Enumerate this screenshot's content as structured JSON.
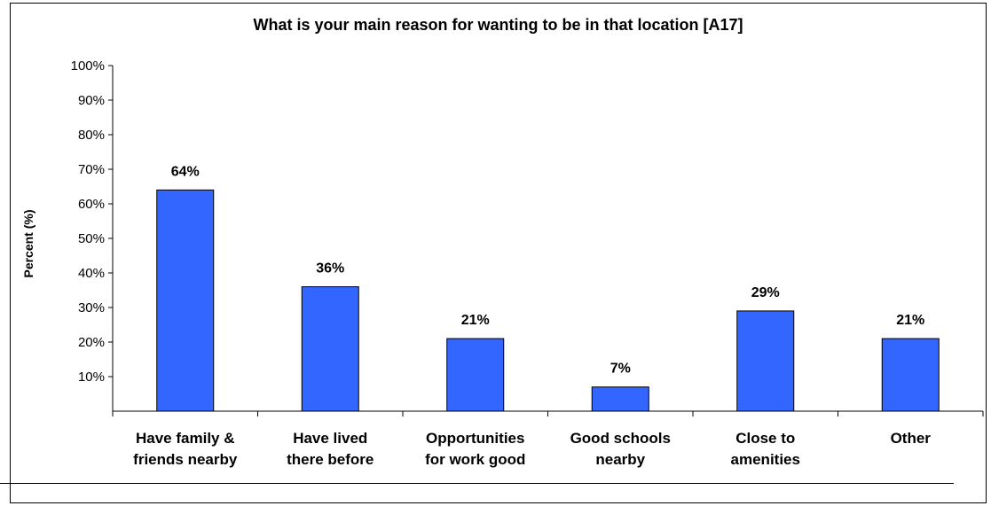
{
  "chart_data": {
    "type": "bar",
    "title": "What is your main reason for wanting to be in that location [A17]",
    "ylabel": "Percent (%)",
    "xlabel": "",
    "ylim": [
      0,
      100
    ],
    "yticks": [
      "10%",
      "20%",
      "30%",
      "40%",
      "50%",
      "60%",
      "70%",
      "80%",
      "90%",
      "100%"
    ],
    "categories": [
      [
        "Have family &",
        "friends nearby"
      ],
      [
        "Have lived",
        "there before"
      ],
      [
        "Opportunities",
        "for work good"
      ],
      [
        "Good schools",
        "nearby"
      ],
      [
        "Close to",
        "amenities"
      ],
      [
        "Other"
      ]
    ],
    "values": [
      64,
      36,
      21,
      7,
      29,
      21
    ],
    "data_labels": [
      "64%",
      "36%",
      "21%",
      "7%",
      "29%",
      "21%"
    ],
    "bar_color": "#3366FF",
    "grid": false,
    "legend": "none"
  }
}
